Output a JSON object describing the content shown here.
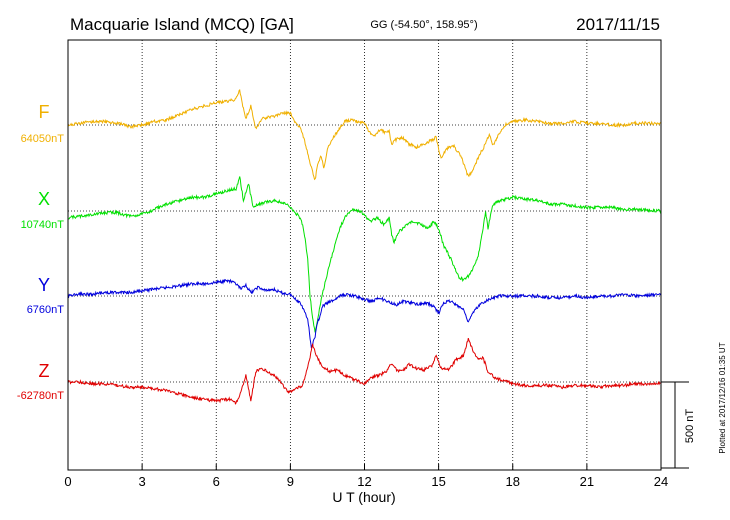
{
  "header": {
    "station": "Macquarie Island (MCQ)  [GA]",
    "coords": "GG (-54.50°, 158.95°)",
    "date": "2017/11/15"
  },
  "footer": {
    "plotted": "Plotted at 2017/12/16 01:35 UT"
  },
  "chart_data": {
    "type": "line",
    "xlabel": "U T (hour)",
    "x_ticks": [
      "0",
      "3",
      "6",
      "9",
      "12",
      "15",
      "18",
      "21",
      "24"
    ],
    "xlim": [
      0,
      24
    ],
    "grid": true,
    "scale_bar": "500 nT",
    "scale_bar_nT": 500,
    "series": [
      {
        "name": "F",
        "baseline_label": "64050nT",
        "color": "#f0b000",
        "points": [
          [
            0,
            0
          ],
          [
            0.5,
            10
          ],
          [
            1,
            20
          ],
          [
            1.5,
            20
          ],
          [
            2,
            10
          ],
          [
            2.5,
            -10
          ],
          [
            3,
            0
          ],
          [
            3.5,
            20
          ],
          [
            4,
            30
          ],
          [
            4.5,
            60
          ],
          [
            5,
            90
          ],
          [
            5.5,
            110
          ],
          [
            6,
            130
          ],
          [
            6.5,
            140
          ],
          [
            6.8,
            150
          ],
          [
            6.95,
            210
          ],
          [
            7.05,
            120
          ],
          [
            7.2,
            40
          ],
          [
            7.4,
            110
          ],
          [
            7.6,
            -20
          ],
          [
            7.9,
            40
          ],
          [
            8.3,
            50
          ],
          [
            8.7,
            70
          ],
          [
            9,
            70
          ],
          [
            9.2,
            10
          ],
          [
            9.4,
            -10
          ],
          [
            9.55,
            -80
          ],
          [
            9.7,
            -160
          ],
          [
            9.85,
            -250
          ],
          [
            10,
            -320
          ],
          [
            10.1,
            -230
          ],
          [
            10.25,
            -180
          ],
          [
            10.35,
            -250
          ],
          [
            10.5,
            -140
          ],
          [
            10.7,
            -80
          ],
          [
            10.9,
            -40
          ],
          [
            11.2,
            20
          ],
          [
            11.5,
            30
          ],
          [
            12,
            10
          ],
          [
            12.2,
            -40
          ],
          [
            12.4,
            -60
          ],
          [
            12.6,
            -30
          ],
          [
            12.8,
            -40
          ],
          [
            13,
            -40
          ],
          [
            13.1,
            -120
          ],
          [
            13.2,
            -90
          ],
          [
            13.5,
            -70
          ],
          [
            13.8,
            -110
          ],
          [
            14.1,
            -130
          ],
          [
            14.4,
            -110
          ],
          [
            14.7,
            -90
          ],
          [
            14.9,
            -70
          ],
          [
            15.1,
            -200
          ],
          [
            15.3,
            -140
          ],
          [
            15.6,
            -120
          ],
          [
            15.9,
            -180
          ],
          [
            16.2,
            -300
          ],
          [
            16.4,
            -260
          ],
          [
            16.6,
            -190
          ],
          [
            16.9,
            -110
          ],
          [
            17.05,
            -50
          ],
          [
            17.2,
            -120
          ],
          [
            17.4,
            -60
          ],
          [
            17.7,
            0
          ],
          [
            18,
            20
          ],
          [
            18.5,
            30
          ],
          [
            19,
            20
          ],
          [
            19.5,
            10
          ],
          [
            20,
            10
          ],
          [
            20.5,
            20
          ],
          [
            21,
            10
          ],
          [
            21.5,
            10
          ],
          [
            22,
            0
          ],
          [
            22.5,
            0
          ],
          [
            23,
            10
          ],
          [
            24,
            10
          ]
        ]
      },
      {
        "name": "X",
        "baseline_label": "10740nT",
        "color": "#00e000",
        "points": [
          [
            0,
            -40
          ],
          [
            0.5,
            -30
          ],
          [
            1,
            -20
          ],
          [
            1.5,
            -10
          ],
          [
            2,
            -10
          ],
          [
            2.5,
            -30
          ],
          [
            3,
            -20
          ],
          [
            3.5,
            10
          ],
          [
            4,
            40
          ],
          [
            4.5,
            60
          ],
          [
            5,
            80
          ],
          [
            5.5,
            80
          ],
          [
            6,
            100
          ],
          [
            6.5,
            120
          ],
          [
            6.8,
            130
          ],
          [
            6.95,
            200
          ],
          [
            7.1,
            60
          ],
          [
            7.3,
            160
          ],
          [
            7.5,
            20
          ],
          [
            7.7,
            40
          ],
          [
            8,
            50
          ],
          [
            8.4,
            60
          ],
          [
            8.8,
            40
          ],
          [
            9,
            20
          ],
          [
            9.2,
            -10
          ],
          [
            9.35,
            -30
          ],
          [
            9.5,
            -80
          ],
          [
            9.6,
            -160
          ],
          [
            9.7,
            -280
          ],
          [
            9.8,
            -500
          ],
          [
            9.9,
            -620
          ],
          [
            10,
            -700
          ],
          [
            10.1,
            -640
          ],
          [
            10.2,
            -550
          ],
          [
            10.3,
            -480
          ],
          [
            10.4,
            -420
          ],
          [
            10.6,
            -300
          ],
          [
            10.8,
            -200
          ],
          [
            11,
            -100
          ],
          [
            11.2,
            -40
          ],
          [
            11.5,
            10
          ],
          [
            11.8,
            0
          ],
          [
            12,
            -20
          ],
          [
            12.2,
            -60
          ],
          [
            12.5,
            -40
          ],
          [
            12.8,
            -80
          ],
          [
            13,
            -40
          ],
          [
            13.1,
            -140
          ],
          [
            13.2,
            -180
          ],
          [
            13.4,
            -120
          ],
          [
            13.7,
            -80
          ],
          [
            14,
            -60
          ],
          [
            14.3,
            -80
          ],
          [
            14.6,
            -100
          ],
          [
            14.8,
            -60
          ],
          [
            15,
            -100
          ],
          [
            15.2,
            -200
          ],
          [
            15.5,
            -280
          ],
          [
            15.8,
            -380
          ],
          [
            16,
            -400
          ],
          [
            16.2,
            -380
          ],
          [
            16.4,
            -330
          ],
          [
            16.6,
            -260
          ],
          [
            16.8,
            -100
          ],
          [
            16.9,
            0
          ],
          [
            17,
            -100
          ],
          [
            17.2,
            40
          ],
          [
            17.5,
            60
          ],
          [
            18,
            80
          ],
          [
            18.5,
            70
          ],
          [
            19,
            60
          ],
          [
            19.5,
            40
          ],
          [
            20,
            40
          ],
          [
            20.5,
            30
          ],
          [
            21,
            20
          ],
          [
            21.5,
            20
          ],
          [
            22,
            20
          ],
          [
            22.5,
            10
          ],
          [
            23,
            10
          ],
          [
            24,
            0
          ]
        ]
      },
      {
        "name": "Y",
        "baseline_label": "6760nT",
        "color": "#0000dd",
        "points": [
          [
            0,
            0
          ],
          [
            0.5,
            10
          ],
          [
            1,
            10
          ],
          [
            1.5,
            20
          ],
          [
            2,
            20
          ],
          [
            2.5,
            20
          ],
          [
            3,
            30
          ],
          [
            3.5,
            40
          ],
          [
            4,
            50
          ],
          [
            4.5,
            60
          ],
          [
            5,
            70
          ],
          [
            5.5,
            70
          ],
          [
            6,
            80
          ],
          [
            6.5,
            90
          ],
          [
            6.8,
            70
          ],
          [
            7,
            40
          ],
          [
            7.2,
            60
          ],
          [
            7.4,
            20
          ],
          [
            7.7,
            50
          ],
          [
            8,
            30
          ],
          [
            8.3,
            40
          ],
          [
            8.6,
            20
          ],
          [
            9,
            10
          ],
          [
            9.2,
            -20
          ],
          [
            9.4,
            -40
          ],
          [
            9.55,
            -80
          ],
          [
            9.7,
            -130
          ],
          [
            9.85,
            -300
          ],
          [
            10,
            -240
          ],
          [
            10.1,
            -150
          ],
          [
            10.2,
            -120
          ],
          [
            10.3,
            -60
          ],
          [
            10.5,
            -40
          ],
          [
            10.8,
            -20
          ],
          [
            11,
            0
          ],
          [
            11.3,
            10
          ],
          [
            11.6,
            0
          ],
          [
            12,
            -20
          ],
          [
            12.3,
            -30
          ],
          [
            12.6,
            -10
          ],
          [
            12.9,
            -30
          ],
          [
            13.1,
            -40
          ],
          [
            13.3,
            -50
          ],
          [
            13.6,
            -30
          ],
          [
            13.9,
            -40
          ],
          [
            14.2,
            -50
          ],
          [
            14.5,
            -40
          ],
          [
            14.8,
            -60
          ],
          [
            15,
            -100
          ],
          [
            15.2,
            -40
          ],
          [
            15.5,
            -30
          ],
          [
            15.8,
            -60
          ],
          [
            16,
            -80
          ],
          [
            16.2,
            -150
          ],
          [
            16.4,
            -100
          ],
          [
            16.6,
            -60
          ],
          [
            16.9,
            -30
          ],
          [
            17.2,
            -10
          ],
          [
            17.5,
            0
          ],
          [
            18,
            0
          ],
          [
            18.5,
            0
          ],
          [
            19,
            0
          ],
          [
            19.5,
            -10
          ],
          [
            20,
            -10
          ],
          [
            20.5,
            0
          ],
          [
            21,
            -10
          ],
          [
            21.5,
            0
          ],
          [
            22,
            0
          ],
          [
            22.5,
            10
          ],
          [
            23,
            0
          ],
          [
            24,
            10
          ]
        ]
      },
      {
        "name": "Z",
        "baseline_label": "-62780nT",
        "color": "#e00000",
        "points": [
          [
            0,
            0
          ],
          [
            0.5,
            0
          ],
          [
            1,
            -10
          ],
          [
            1.5,
            -10
          ],
          [
            2,
            -20
          ],
          [
            2.5,
            -30
          ],
          [
            3,
            -30
          ],
          [
            3.5,
            -40
          ],
          [
            4,
            -50
          ],
          [
            4.5,
            -70
          ],
          [
            5,
            -90
          ],
          [
            5.5,
            -100
          ],
          [
            6,
            -110
          ],
          [
            6.5,
            -100
          ],
          [
            6.8,
            -120
          ],
          [
            7,
            -60
          ],
          [
            7.2,
            40
          ],
          [
            7.4,
            -110
          ],
          [
            7.6,
            60
          ],
          [
            7.8,
            80
          ],
          [
            8.1,
            60
          ],
          [
            8.5,
            20
          ],
          [
            8.9,
            -60
          ],
          [
            9.2,
            -40
          ],
          [
            9.5,
            -20
          ],
          [
            9.7,
            80
          ],
          [
            9.9,
            220
          ],
          [
            10,
            170
          ],
          [
            10.2,
            110
          ],
          [
            10.4,
            80
          ],
          [
            10.6,
            60
          ],
          [
            10.9,
            70
          ],
          [
            11.2,
            40
          ],
          [
            11.5,
            20
          ],
          [
            11.8,
            0
          ],
          [
            12,
            -10
          ],
          [
            12.3,
            30
          ],
          [
            12.6,
            40
          ],
          [
            12.9,
            60
          ],
          [
            13.1,
            110
          ],
          [
            13.3,
            70
          ],
          [
            13.5,
            60
          ],
          [
            13.8,
            100
          ],
          [
            14.1,
            80
          ],
          [
            14.4,
            70
          ],
          [
            14.7,
            90
          ],
          [
            14.9,
            150
          ],
          [
            15.1,
            80
          ],
          [
            15.4,
            70
          ],
          [
            15.7,
            130
          ],
          [
            16,
            150
          ],
          [
            16.2,
            250
          ],
          [
            16.4,
            180
          ],
          [
            16.6,
            130
          ],
          [
            16.8,
            140
          ],
          [
            17,
            60
          ],
          [
            17.3,
            20
          ],
          [
            17.6,
            10
          ],
          [
            18,
            -10
          ],
          [
            18.5,
            -20
          ],
          [
            19,
            -20
          ],
          [
            19.5,
            -20
          ],
          [
            20,
            -30
          ],
          [
            20.5,
            -20
          ],
          [
            21,
            -20
          ],
          [
            21.5,
            -30
          ],
          [
            22,
            -20
          ],
          [
            22.5,
            -20
          ],
          [
            23,
            -10
          ],
          [
            24,
            -10
          ]
        ]
      }
    ]
  }
}
